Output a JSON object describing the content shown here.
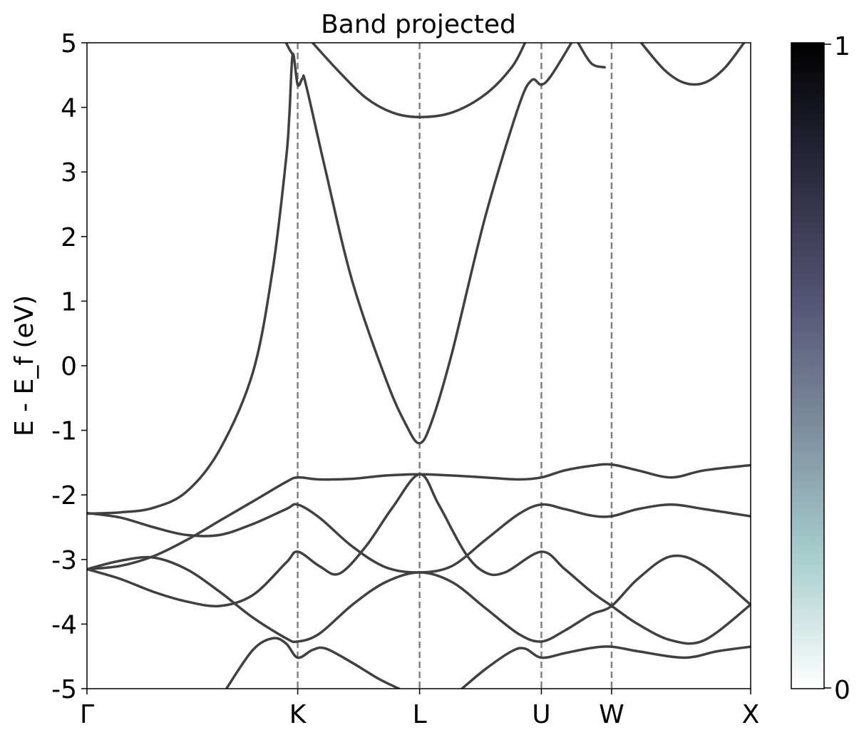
{
  "chart_data": {
    "type": "line",
    "title": "Band projected",
    "xlabel": "",
    "ylabel": "E - E_f (eV)",
    "ylim": [
      -5,
      5
    ],
    "xlim": [
      0,
      1
    ],
    "yticks": [
      "5",
      "4",
      "3",
      "2",
      "1",
      "0",
      "-1",
      "-2",
      "-3",
      "-4",
      "-5"
    ],
    "ytick_values": [
      5,
      4,
      3,
      2,
      1,
      0,
      -1,
      -2,
      -3,
      -4,
      -5
    ],
    "kpoints": [
      {
        "label": "Γ",
        "x": 0.0
      },
      {
        "label": "K",
        "x": 0.3175
      },
      {
        "label": "L",
        "x": 0.5012
      },
      {
        "label": "U",
        "x": 0.6847
      },
      {
        "label": "W",
        "x": 0.7905
      },
      {
        "label": "X",
        "x": 1.0
      }
    ],
    "grid": false,
    "colorbar": {
      "min_label": "0",
      "max_label": "1",
      "min": 0,
      "max": 1,
      "colors": [
        "#ffffff",
        "#a8cfcd",
        "#7e8fa0",
        "#545474",
        "#2a2a3e",
        "#000000"
      ]
    },
    "line_color": "#404040",
    "series": [
      {
        "values": [
          [
            0.0,
            -2.29
          ],
          [
            0.05,
            -2.27
          ],
          [
            0.1,
            -2.2
          ],
          [
            0.15,
            -1.95
          ],
          [
            0.2,
            -1.3
          ],
          [
            0.25,
            -0.1
          ],
          [
            0.28,
            1.5
          ],
          [
            0.3,
            3.2
          ],
          [
            0.305,
            3.9
          ],
          [
            0.31,
            4.82
          ],
          [
            0.3175,
            4.35
          ],
          [
            0.325,
            4.45
          ],
          [
            0.33,
            4.35
          ],
          [
            0.36,
            3.0
          ],
          [
            0.4,
            1.3
          ],
          [
            0.45,
            -0.2
          ],
          [
            0.48,
            -0.9
          ],
          [
            0.5012,
            -1.2
          ],
          [
            0.52,
            -0.85
          ],
          [
            0.55,
            0.2
          ],
          [
            0.6,
            2.3
          ],
          [
            0.65,
            4.0
          ],
          [
            0.67,
            4.42
          ],
          [
            0.6847,
            4.35
          ],
          [
            0.7,
            4.5
          ],
          [
            0.73,
            5.0
          ]
        ]
      },
      {
        "values": [
          [
            0.0,
            -2.28
          ],
          [
            0.05,
            -2.35
          ],
          [
            0.1,
            -2.5
          ],
          [
            0.15,
            -2.62
          ],
          [
            0.2,
            -2.62
          ],
          [
            0.25,
            -2.45
          ],
          [
            0.3,
            -2.22
          ],
          [
            0.3175,
            -2.15
          ],
          [
            0.35,
            -2.35
          ],
          [
            0.4,
            -2.8
          ],
          [
            0.45,
            -3.12
          ],
          [
            0.5012,
            -3.2
          ],
          [
            0.55,
            -3.1
          ],
          [
            0.6,
            -2.7
          ],
          [
            0.65,
            -2.3
          ],
          [
            0.6847,
            -2.15
          ],
          [
            0.72,
            -2.22
          ],
          [
            0.76,
            -2.32
          ],
          [
            0.7905,
            -2.33
          ],
          [
            0.83,
            -2.22
          ],
          [
            0.88,
            -2.15
          ],
          [
            0.93,
            -2.22
          ],
          [
            1.0,
            -2.33
          ]
        ]
      },
      {
        "values": [
          [
            0.0,
            -3.15
          ],
          [
            0.05,
            -3.1
          ],
          [
            0.1,
            -2.95
          ],
          [
            0.15,
            -2.7
          ],
          [
            0.2,
            -2.4
          ],
          [
            0.25,
            -2.1
          ],
          [
            0.3,
            -1.8
          ],
          [
            0.3175,
            -1.73
          ],
          [
            0.35,
            -1.76
          ],
          [
            0.4,
            -1.75
          ],
          [
            0.45,
            -1.7
          ],
          [
            0.5012,
            -1.68
          ],
          [
            0.55,
            -1.7
          ],
          [
            0.6,
            -1.73
          ],
          [
            0.65,
            -1.76
          ],
          [
            0.6847,
            -1.73
          ],
          [
            0.72,
            -1.62
          ],
          [
            0.76,
            -1.55
          ],
          [
            0.7905,
            -1.53
          ],
          [
            0.83,
            -1.62
          ],
          [
            0.88,
            -1.73
          ],
          [
            0.93,
            -1.62
          ],
          [
            1.0,
            -1.54
          ]
        ]
      },
      {
        "values": [
          [
            0.0,
            -3.15
          ],
          [
            0.05,
            -3.02
          ],
          [
            0.1,
            -2.97
          ],
          [
            0.15,
            -3.15
          ],
          [
            0.2,
            -3.5
          ],
          [
            0.25,
            -3.9
          ],
          [
            0.3,
            -4.22
          ],
          [
            0.3175,
            -4.27
          ],
          [
            0.35,
            -4.15
          ],
          [
            0.4,
            -3.7
          ],
          [
            0.45,
            -3.35
          ],
          [
            0.5012,
            -3.2
          ],
          [
            0.55,
            -3.35
          ],
          [
            0.6,
            -3.75
          ],
          [
            0.65,
            -4.15
          ],
          [
            0.6847,
            -4.27
          ],
          [
            0.72,
            -4.1
          ],
          [
            0.76,
            -3.85
          ],
          [
            0.7905,
            -3.72
          ],
          [
            0.83,
            -3.3
          ],
          [
            0.88,
            -2.95
          ],
          [
            0.93,
            -3.1
          ],
          [
            1.0,
            -3.7
          ]
        ]
      },
      {
        "values": [
          [
            0.0,
            -3.15
          ],
          [
            0.05,
            -3.3
          ],
          [
            0.1,
            -3.5
          ],
          [
            0.15,
            -3.65
          ],
          [
            0.2,
            -3.72
          ],
          [
            0.25,
            -3.55
          ],
          [
            0.3,
            -3.05
          ],
          [
            0.3175,
            -2.88
          ],
          [
            0.35,
            -3.1
          ],
          [
            0.38,
            -3.22
          ],
          [
            0.42,
            -2.8
          ],
          [
            0.46,
            -2.2
          ],
          [
            0.5012,
            -1.68
          ],
          [
            0.53,
            -2.15
          ],
          [
            0.57,
            -2.9
          ],
          [
            0.6,
            -3.2
          ],
          [
            0.63,
            -3.2
          ],
          [
            0.6847,
            -2.88
          ],
          [
            0.72,
            -3.15
          ],
          [
            0.76,
            -3.5
          ],
          [
            0.7905,
            -3.72
          ],
          [
            0.83,
            -4.0
          ],
          [
            0.88,
            -4.25
          ],
          [
            0.93,
            -4.25
          ],
          [
            1.0,
            -3.7
          ]
        ]
      },
      {
        "values": [
          [
            0.21,
            -5.0
          ],
          [
            0.25,
            -4.4
          ],
          [
            0.28,
            -4.22
          ],
          [
            0.3,
            -4.3
          ],
          [
            0.3175,
            -4.52
          ],
          [
            0.34,
            -4.4
          ],
          [
            0.36,
            -4.38
          ],
          [
            0.4,
            -4.6
          ],
          [
            0.44,
            -4.85
          ],
          [
            0.47,
            -5.0
          ]
        ]
      },
      {
        "values": [
          [
            0.565,
            -5.0
          ],
          [
            0.6,
            -4.7
          ],
          [
            0.64,
            -4.42
          ],
          [
            0.66,
            -4.38
          ],
          [
            0.6847,
            -4.52
          ],
          [
            0.72,
            -4.45
          ],
          [
            0.76,
            -4.37
          ],
          [
            0.7905,
            -4.35
          ],
          [
            0.83,
            -4.42
          ],
          [
            0.9,
            -4.52
          ],
          [
            0.95,
            -4.42
          ],
          [
            1.0,
            -4.35
          ]
        ]
      },
      {
        "values": [
          [
            0.34,
            5.0
          ],
          [
            0.38,
            4.55
          ],
          [
            0.42,
            4.15
          ],
          [
            0.46,
            3.92
          ],
          [
            0.5012,
            3.85
          ],
          [
            0.55,
            3.92
          ],
          [
            0.6,
            4.2
          ],
          [
            0.64,
            4.62
          ],
          [
            0.66,
            5.0
          ]
        ]
      },
      {
        "values": [
          [
            0.3,
            5.0
          ],
          [
            0.305,
            4.9
          ],
          [
            0.31,
            4.82
          ]
        ]
      },
      {
        "values": [
          [
            0.74,
            5.0
          ],
          [
            0.76,
            4.68
          ],
          [
            0.78,
            4.62
          ]
        ]
      },
      {
        "values": [
          [
            0.835,
            5.0
          ],
          [
            0.87,
            4.58
          ],
          [
            0.9,
            4.38
          ],
          [
            0.93,
            4.38
          ],
          [
            0.96,
            4.6
          ],
          [
            0.99,
            5.0
          ]
        ]
      }
    ]
  }
}
